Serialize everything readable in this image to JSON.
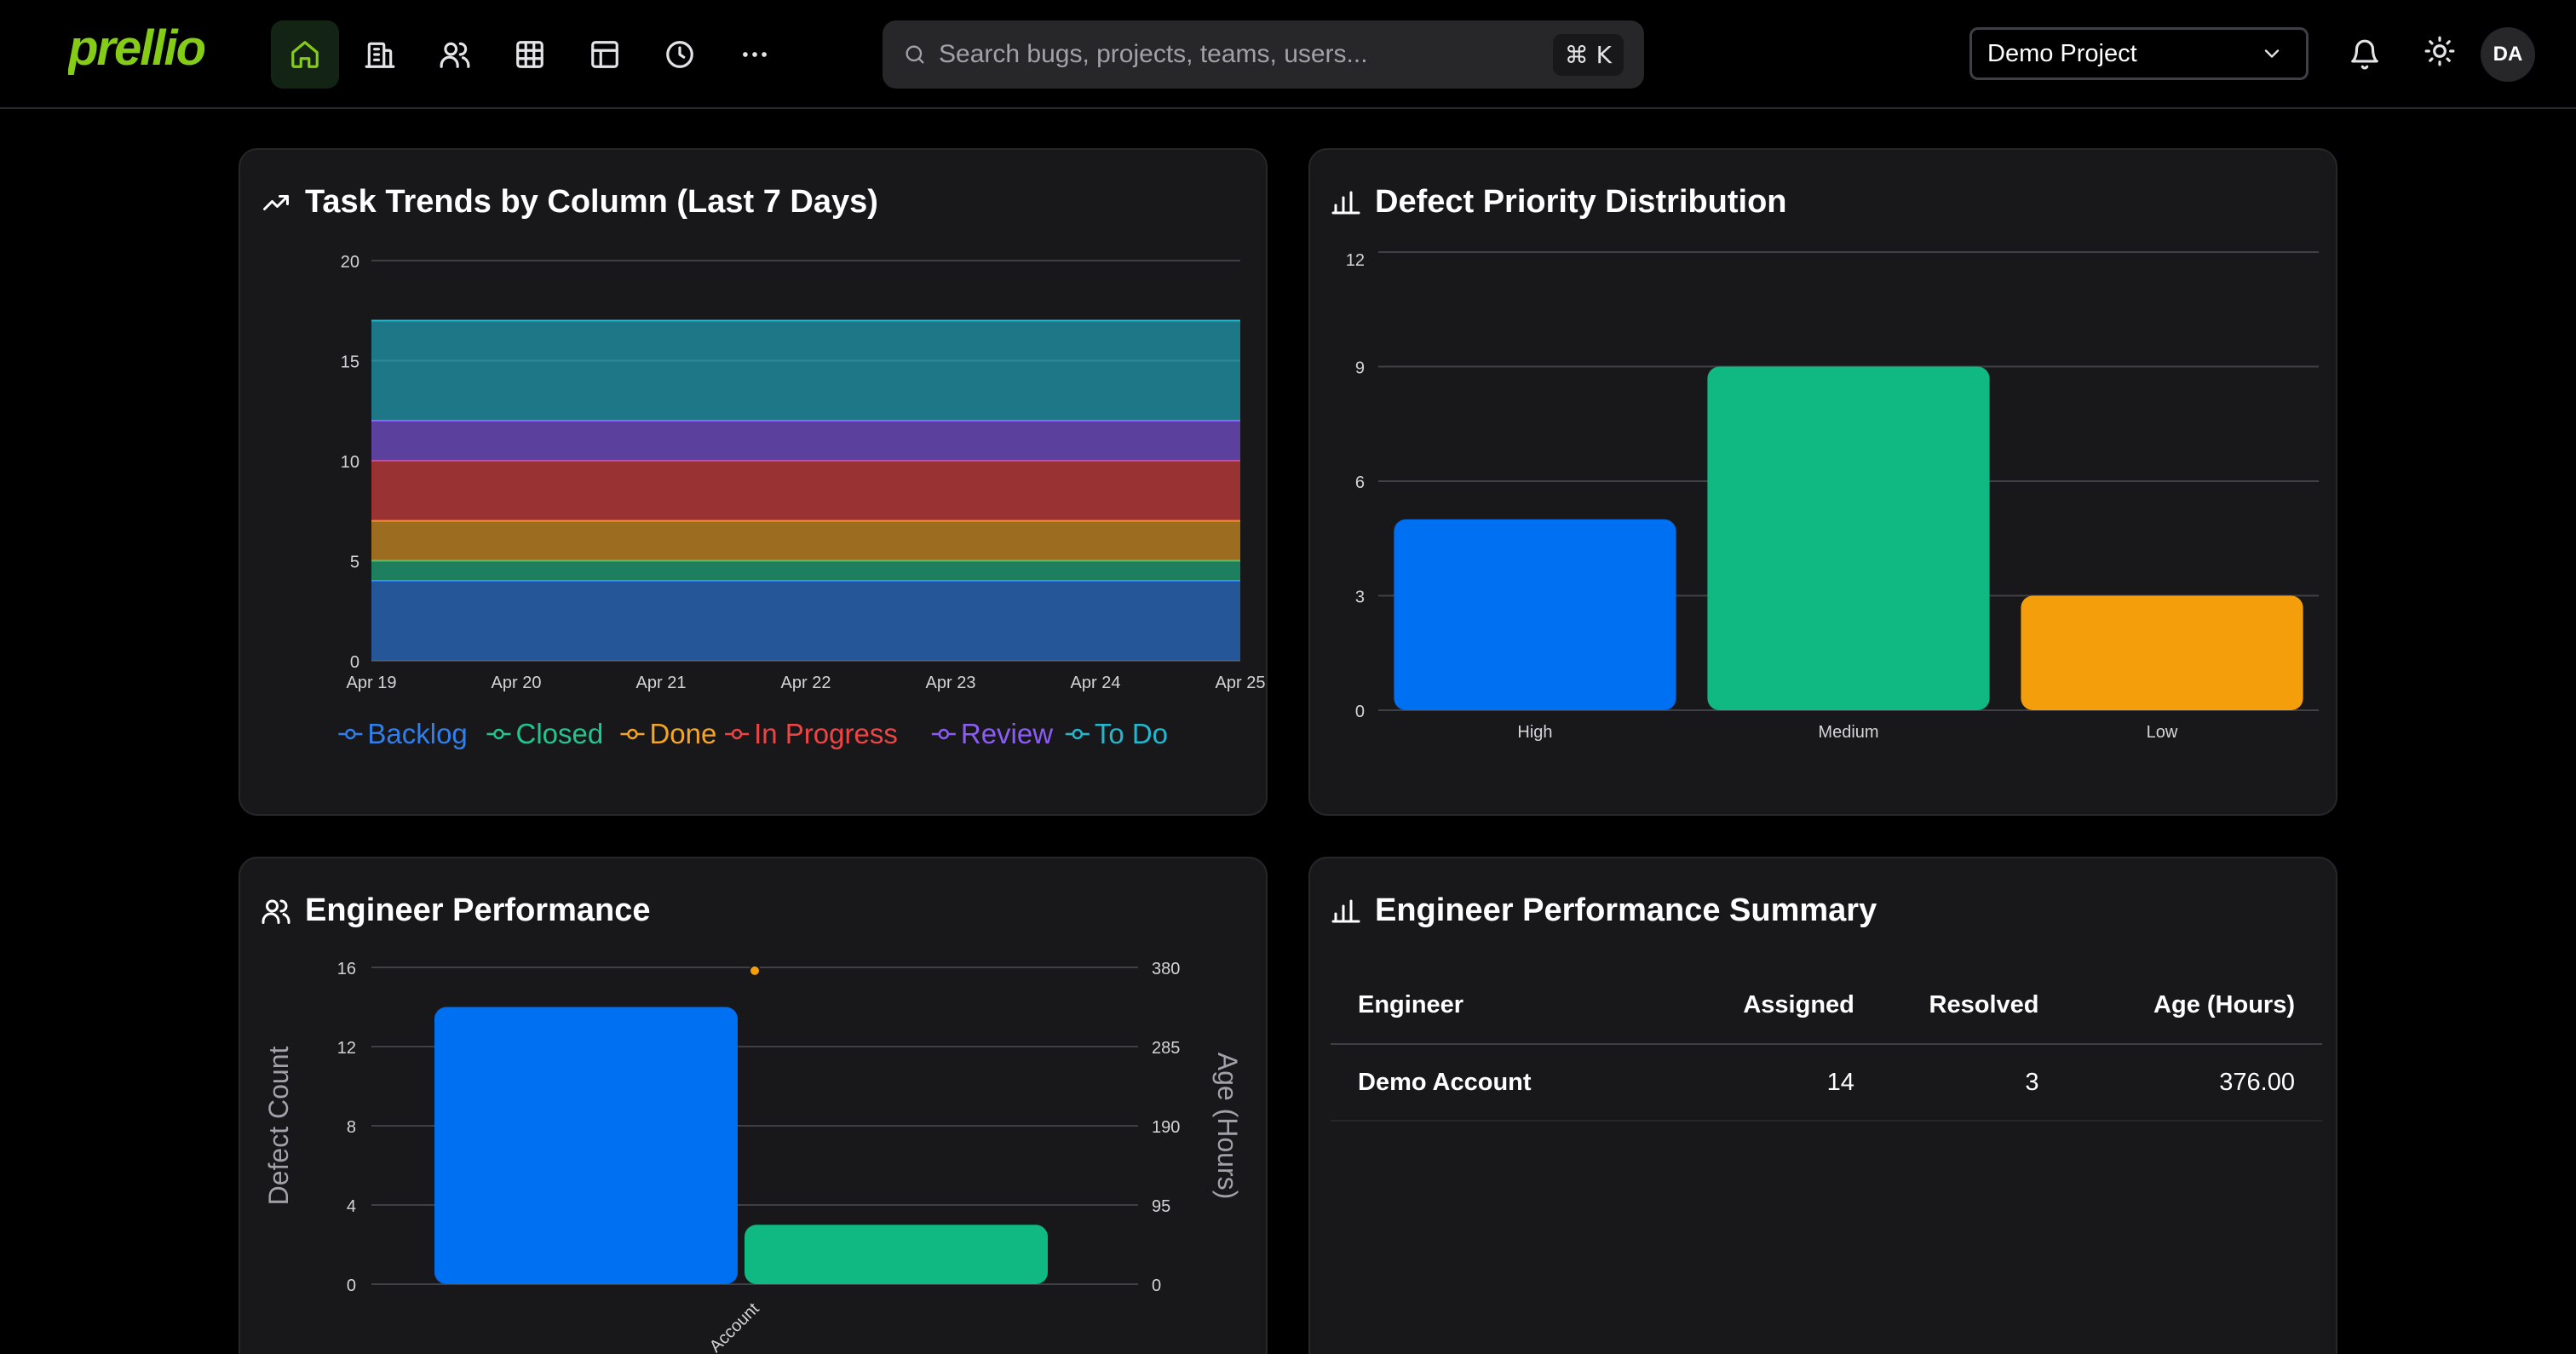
{
  "app": {
    "logo_text": "prellio",
    "brand_color": "#84cc16"
  },
  "nav": {
    "items": [
      {
        "icon": "home-icon",
        "active": true
      },
      {
        "icon": "building-icon",
        "active": false
      },
      {
        "icon": "users-icon",
        "active": false
      },
      {
        "icon": "grid-table-icon",
        "active": false
      },
      {
        "icon": "layout-icon",
        "active": false
      },
      {
        "icon": "clock-icon",
        "active": false
      },
      {
        "icon": "more-horizontal-icon",
        "active": false
      }
    ]
  },
  "search": {
    "placeholder": "Search bugs, projects, teams, users...",
    "shortcut": "⌘ K"
  },
  "project": {
    "selected": "Demo Project"
  },
  "user": {
    "initials": "DA"
  },
  "task_trends": {
    "title": "Task Trends by Column (Last 7 Days)",
    "chart_data": {
      "type": "area",
      "stacked": true,
      "x": [
        "Apr 19",
        "Apr 20",
        "Apr 21",
        "Apr 22",
        "Apr 23",
        "Apr 24",
        "Apr 25"
      ],
      "ylim": [
        0,
        20
      ],
      "yticks": [
        "0",
        "5",
        "10",
        "15",
        "20"
      ],
      "grid": true,
      "legend": "bottom",
      "series": [
        {
          "name": "Backlog",
          "color": "#2f80ed",
          "values": [
            4,
            4,
            4,
            4,
            4,
            4,
            4
          ]
        },
        {
          "name": "Closed",
          "color": "#22c58b",
          "values": [
            1,
            1,
            1,
            1,
            1,
            1,
            1
          ]
        },
        {
          "name": "Done",
          "color": "#f5a524",
          "values": [
            2,
            2,
            2,
            2,
            2,
            2,
            2
          ]
        },
        {
          "name": "In Progress",
          "color": "#ef4444",
          "values": [
            3,
            3,
            3,
            3,
            3,
            3,
            3
          ]
        },
        {
          "name": "Review",
          "color": "#8b5cf6",
          "values": [
            2,
            2,
            2,
            2,
            2,
            2,
            2
          ]
        },
        {
          "name": "To Do",
          "color": "#22b8cf",
          "values": [
            5,
            5,
            5,
            5,
            5,
            5,
            5
          ]
        }
      ]
    }
  },
  "defect_priority": {
    "title": "Defect Priority Distribution",
    "chart_data": {
      "type": "bar",
      "categories": [
        "High",
        "Medium",
        "Low"
      ],
      "values": [
        5,
        9,
        3
      ],
      "colors": [
        "#0070f3",
        "#10b981",
        "#f59e0b"
      ],
      "ylim": [
        0,
        12
      ],
      "yticks": [
        "0",
        "3",
        "6",
        "9",
        "12"
      ],
      "grid": true
    }
  },
  "engineer_performance": {
    "title": "Engineer Performance",
    "chart_data": {
      "type": "bar",
      "categories": [
        "Demo Account"
      ],
      "category_label_visible": "Account",
      "ylabel": "Defect Count",
      "y2label": "Age (Hours)",
      "ylim": [
        0,
        16
      ],
      "yticks": [
        "0",
        "4",
        "8",
        "12",
        "16"
      ],
      "y2lim": [
        0,
        380
      ],
      "y2ticks": [
        "0",
        "95",
        "190",
        "285",
        "380"
      ],
      "grid": true,
      "series": [
        {
          "axis": "left",
          "color": "#0070f3",
          "values": [
            14
          ]
        },
        {
          "axis": "left",
          "color": "#10b981",
          "values": [
            3
          ]
        },
        {
          "axis": "right",
          "type": "line",
          "color": "#f59e0b",
          "values": [
            376
          ]
        }
      ]
    }
  },
  "summary": {
    "title": "Engineer Performance Summary",
    "headers": {
      "engineer": "Engineer",
      "assigned": "Assigned",
      "resolved": "Resolved",
      "age": "Age (Hours)"
    },
    "rows": [
      {
        "engineer": "Demo Account",
        "assigned": "14",
        "resolved": "3",
        "age": "376.00"
      }
    ]
  }
}
